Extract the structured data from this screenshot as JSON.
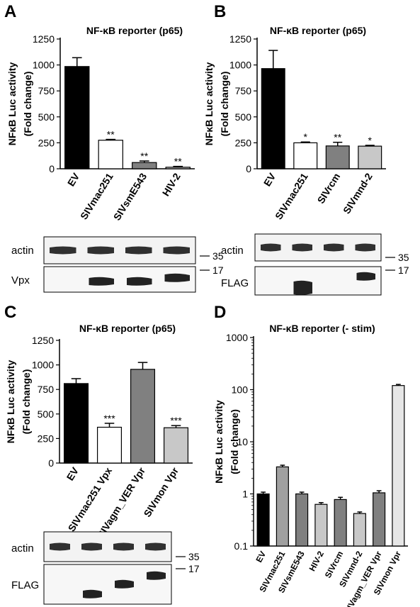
{
  "panels": [
    {
      "letter": "A",
      "title": "NF-κB reporter (p65)",
      "ylabel": [
        "NFκB Luc activity",
        "(Fold change)"
      ],
      "blot": {
        "rows": [
          {
            "label": "actin",
            "marker": "35"
          },
          {
            "label": "Vpx",
            "marker": "17"
          }
        ]
      }
    },
    {
      "letter": "B",
      "title": "NF-κB reporter (p65)",
      "ylabel": [
        "NFκB Luc activity",
        "(Fold change)"
      ],
      "blot": {
        "rows": [
          {
            "label": "actin",
            "marker": "35"
          },
          {
            "label": "FLAG",
            "marker": "17"
          }
        ]
      }
    },
    {
      "letter": "C",
      "title": "NF-κB reporter (p65)",
      "ylabel": [
        "NFκB Luc activity",
        "(Fold change)"
      ],
      "blot": {
        "rows": [
          {
            "label": "actin",
            "marker": "35"
          },
          {
            "label": "FLAG",
            "marker": "17"
          }
        ]
      }
    },
    {
      "letter": "D",
      "title": "NF-κB reporter (- stim)",
      "ylabel": [
        "NFκB Luc activity",
        "(Fold change)"
      ]
    }
  ],
  "chart_data": [
    {
      "type": "bar",
      "title": "NF-κB reporter (p65)",
      "ylabel": "NFκB Luc activity (Fold change)",
      "categories": [
        "EV",
        "SIVmac251",
        "SIVsmE543",
        "HIV-2"
      ],
      "values": [
        985,
        275,
        60,
        15
      ],
      "errors": [
        85,
        8,
        15,
        8
      ],
      "significance": [
        "",
        "**",
        "**",
        "**"
      ],
      "fills": [
        "#000000",
        "#ffffff",
        "#808080",
        "#c8c8c8"
      ],
      "ylim": [
        0,
        1250
      ],
      "yticks": [
        0,
        250,
        500,
        750,
        1000,
        1250
      ],
      "scale": "linear"
    },
    {
      "type": "bar",
      "title": "NF-κB reporter (p65)",
      "ylabel": "NFκB Luc activity (Fold change)",
      "categories": [
        "EV",
        "SIVmac251",
        "SIVrcm",
        "SIVmnd-2"
      ],
      "values": [
        965,
        250,
        220,
        218
      ],
      "errors": [
        175,
        8,
        35,
        8
      ],
      "significance": [
        "",
        "*",
        "**",
        "*"
      ],
      "fills": [
        "#000000",
        "#ffffff",
        "#808080",
        "#c8c8c8"
      ],
      "ylim": [
        0,
        1250
      ],
      "yticks": [
        0,
        250,
        500,
        750,
        1000,
        1250
      ],
      "scale": "linear"
    },
    {
      "type": "bar",
      "title": "NF-κB reporter (p65)",
      "ylabel": "NFκB Luc activity (Fold change)",
      "categories": [
        "EV",
        "SIVmac251 Vpx",
        "SIVagm_VER Vpr",
        "SIVmon Vpr"
      ],
      "values": [
        810,
        365,
        955,
        360
      ],
      "errors": [
        50,
        40,
        70,
        22
      ],
      "significance": [
        "",
        "***",
        "",
        "***"
      ],
      "fills": [
        "#000000",
        "#ffffff",
        "#808080",
        "#c8c8c8"
      ],
      "ylim": [
        0,
        1250
      ],
      "yticks": [
        0,
        250,
        500,
        750,
        1000,
        1250
      ],
      "scale": "linear"
    },
    {
      "type": "bar",
      "title": "NF-κB reporter (- stim)",
      "ylabel": "NFκB Luc activity (Fold change)",
      "categories": [
        "EV",
        "SIVmac251",
        "SIVsmE543",
        "HIV-2",
        "SIVrcm",
        "SIVmnd-2",
        "SIVagm_VER Vpr",
        "SIVmon Vpr"
      ],
      "values": [
        1.0,
        3.3,
        1.0,
        0.63,
        0.78,
        0.42,
        1.05,
        120
      ],
      "errors": [
        0.08,
        0.25,
        0.08,
        0.05,
        0.08,
        0.03,
        0.1,
        6
      ],
      "significance": [
        "",
        "",
        "",
        "",
        "",
        "",
        "",
        ""
      ],
      "fills": [
        "#000000",
        "#a0a0a0",
        "#808080",
        "#c8c8c8",
        "#808080",
        "#c8c8c8",
        "#808080",
        "#e6e6e6"
      ],
      "ylim": [
        0.1,
        1000
      ],
      "yticks": [
        0.1,
        1,
        10,
        100,
        1000
      ],
      "scale": "log"
    }
  ]
}
